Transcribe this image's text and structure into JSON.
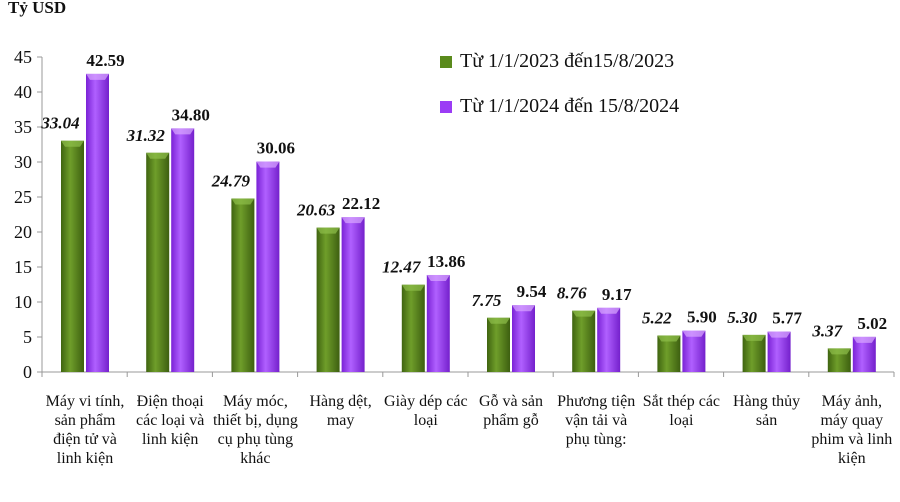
{
  "chart_data": {
    "type": "bar",
    "ylabel": "Tỷ USD",
    "ylim": [
      0,
      45
    ],
    "yticks": [
      0,
      5,
      10,
      15,
      20,
      25,
      30,
      35,
      40,
      45
    ],
    "grid": false,
    "legend_placement": "top-right",
    "categories": [
      "Máy vi tính, sản phẩm điện tử và linh kiện",
      "Điện thoại các loại và linh kiện",
      "Máy móc, thiết bị, dụng cụ phụ tùng khác",
      "Hàng dệt, may",
      "Giày dép các loại",
      "Gỗ và sản phẩm gỗ",
      "Phương tiện vận tải và phụ tùng:",
      "Sắt thép các loại",
      "Hàng thủy sản",
      "Máy ảnh, máy quay phim và linh kiện"
    ],
    "series": [
      {
        "name": "Từ 1/1/2023 đến15/8/2023",
        "color": "#5a8a1c",
        "values": [
          33.04,
          31.32,
          24.79,
          20.63,
          12.47,
          7.75,
          8.76,
          5.22,
          5.3,
          3.37
        ],
        "labels": [
          "33.04",
          "31.32",
          "24.79",
          "20.63",
          "12.47",
          "7.75",
          "8.76",
          "5.22",
          "5.30",
          "3.37"
        ]
      },
      {
        "name": "Từ 1/1/2024 đến 15/8/2024",
        "color": "#9b3cf5",
        "values": [
          42.59,
          34.8,
          30.06,
          22.12,
          13.86,
          9.54,
          9.17,
          5.9,
          5.77,
          5.02
        ],
        "labels": [
          "42.59",
          "34.80",
          "30.06",
          "22.12",
          "13.86",
          "9.54",
          "9.17",
          "5.90",
          "5.77",
          "5.02"
        ]
      }
    ]
  }
}
